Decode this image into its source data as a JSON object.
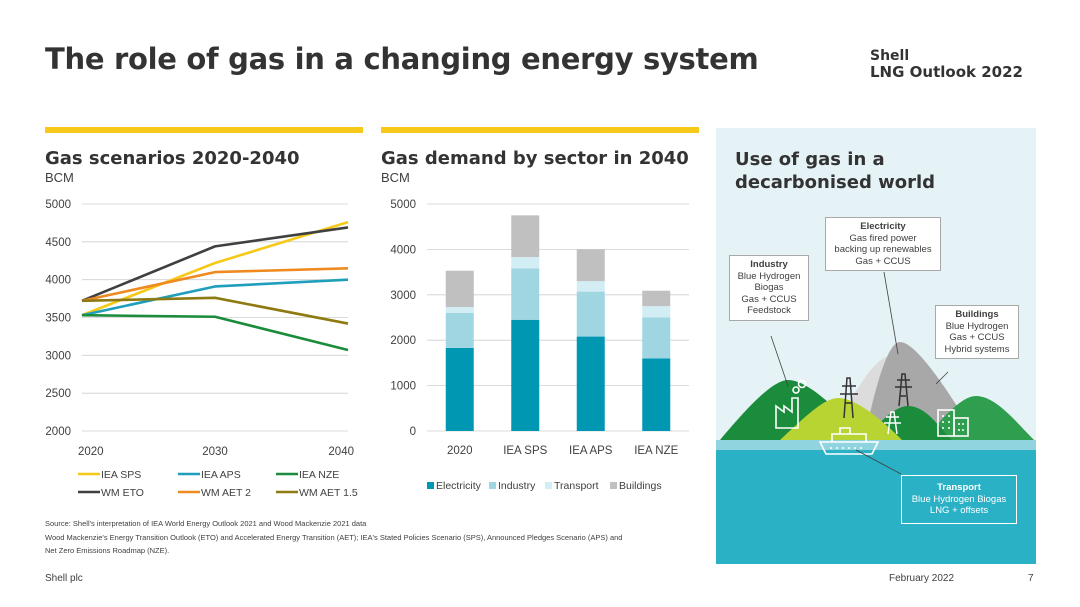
{
  "page_title": "The role of gas in a changing energy system",
  "logo": {
    "line1": "Shell",
    "line2": "LNG Outlook 2022"
  },
  "colors": {
    "yellow": "#f6c918",
    "iea_sps": "#f6c918",
    "iea_aps": "#1f9fbc",
    "iea_nze": "#1a8c3c",
    "wm_eto": "#404040",
    "wm_aet2": "#ee8a1f",
    "wm_aet15": "#8e7a12",
    "electricity": "#0097b2",
    "industry": "#9fd6e2",
    "transport": "#d2eef4",
    "buildings": "#c0c0c0"
  },
  "chart_data": [
    {
      "type": "line",
      "title": "Gas scenarios 2020-2040",
      "ylabel": "BCM",
      "x": [
        2020,
        2030,
        2040
      ],
      "xticks": [
        "2020",
        "2030",
        "2040"
      ],
      "ylim": [
        2000,
        5000
      ],
      "yticks": [
        "5000",
        "4500",
        "4000",
        "3500",
        "3000",
        "2500",
        "2000"
      ],
      "series": [
        {
          "name": "IEA SPS",
          "color": "#f6c918",
          "values": [
            3530,
            4220,
            4760
          ]
        },
        {
          "name": "IEA APS",
          "color": "#1f9fbc",
          "values": [
            3530,
            3910,
            4000
          ]
        },
        {
          "name": "IEA NZE",
          "color": "#1a8c3c",
          "values": [
            3530,
            3510,
            3070
          ]
        },
        {
          "name": "WM ETO",
          "color": "#404040",
          "values": [
            3720,
            4440,
            4690
          ]
        },
        {
          "name": "WM AET 2",
          "color": "#ee8a1f",
          "values": [
            3720,
            4100,
            4150
          ]
        },
        {
          "name": "WM AET 1.5",
          "color": "#8e7a12",
          "values": [
            3720,
            3760,
            3420
          ]
        }
      ]
    },
    {
      "type": "bar",
      "stacked": true,
      "title": "Gas demand by sector in 2040",
      "ylabel": "BCM",
      "categories": [
        "2020",
        "IEA SPS",
        "IEA APS",
        "IEA NZE"
      ],
      "ylim": [
        0,
        5000
      ],
      "yticks": [
        "5000",
        "4000",
        "3000",
        "2000",
        "1000",
        "0"
      ],
      "series": [
        {
          "name": "Electricity",
          "color": "#0097b2",
          "values": [
            1830,
            2450,
            2080,
            1600
          ]
        },
        {
          "name": "Industry",
          "color": "#9fd6e2",
          "values": [
            770,
            1130,
            990,
            900
          ]
        },
        {
          "name": "Transport",
          "color": "#d2eef4",
          "values": [
            130,
            250,
            230,
            250
          ]
        },
        {
          "name": "Buildings",
          "color": "#c0c0c0",
          "values": [
            800,
            920,
            700,
            340
          ]
        }
      ]
    }
  ],
  "right_panel": {
    "title_line1": "Use of gas in a",
    "title_line2": "decarbonised world",
    "electricity": {
      "title": "Electricity",
      "lines": [
        "Gas fired power",
        "backing up renewables",
        "Gas + CCUS"
      ]
    },
    "industry": {
      "title": "Industry",
      "lines": [
        "Blue Hydrogen",
        "Biogas",
        "Gas + CCUS",
        "Feedstock"
      ]
    },
    "buildings": {
      "title": "Buildings",
      "lines": [
        "Blue Hydrogen",
        "Gas + CCUS",
        "Hybrid systems"
      ]
    },
    "transport": {
      "title": "Transport",
      "lines": [
        "Blue Hydrogen Biogas",
        "LNG + offsets"
      ]
    }
  },
  "footnotes": {
    "line1": "Source: Shell's interpretation of IEA World Energy Outlook 2021 and Wood Mackenzie 2021 data",
    "line2": "Wood Mackenzie's Energy Transition Outlook (ETO) and Accelerated Energy Transition (AET); IEA's Stated Policies Scenario (SPS), Announced Pledges Scenario (APS) and",
    "line3": "Net Zero Emissions Roadmap (NZE)."
  },
  "footer": {
    "left": "Shell plc",
    "date": "February 2022",
    "page": "7"
  }
}
